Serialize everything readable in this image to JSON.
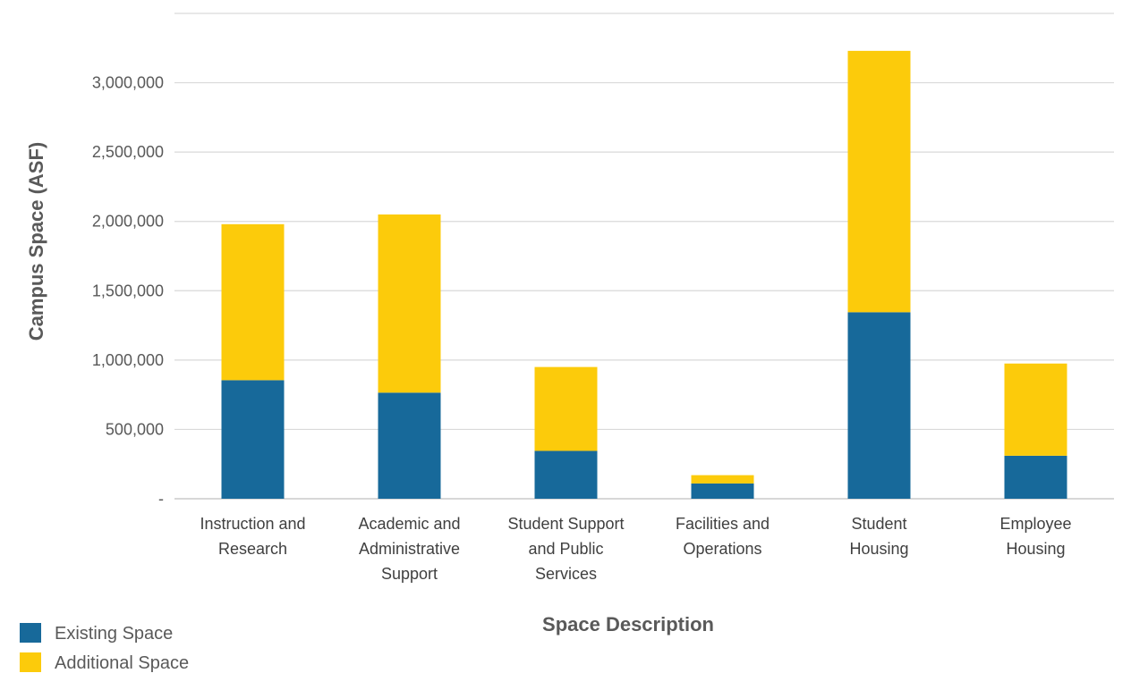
{
  "chart_data": {
    "type": "bar",
    "stacked": true,
    "xlabel": "Space Description",
    "ylabel": "Campus Space (ASF)",
    "categories": [
      [
        "Instruction and",
        "Research"
      ],
      [
        "Academic and",
        "Administrative",
        "Support"
      ],
      [
        "Student Support",
        "and Public",
        "Services"
      ],
      [
        "Facilities and",
        "Operations"
      ],
      [
        "Student",
        "Housing"
      ],
      [
        "Employee",
        "Housing"
      ]
    ],
    "series": [
      {
        "name": "Existing Space",
        "color": "#17699a",
        "values": [
          855000,
          765000,
          345000,
          110000,
          1345000,
          310000
        ]
      },
      {
        "name": "Additional Space",
        "color": "#fccb0b",
        "values": [
          1125000,
          1285000,
          605000,
          60000,
          1885000,
          665000
        ]
      }
    ],
    "ylim": [
      0,
      3500000
    ],
    "yticks": [
      0,
      500000,
      1000000,
      1500000,
      2000000,
      2500000,
      3000000,
      3500000
    ],
    "ytick_labels": [
      "-",
      "500,000",
      "1,000,000",
      "1,500,000",
      "2,000,000",
      "2,500,000",
      "3,000,000",
      ""
    ],
    "grid": true,
    "legend_position": "bottom-left"
  }
}
